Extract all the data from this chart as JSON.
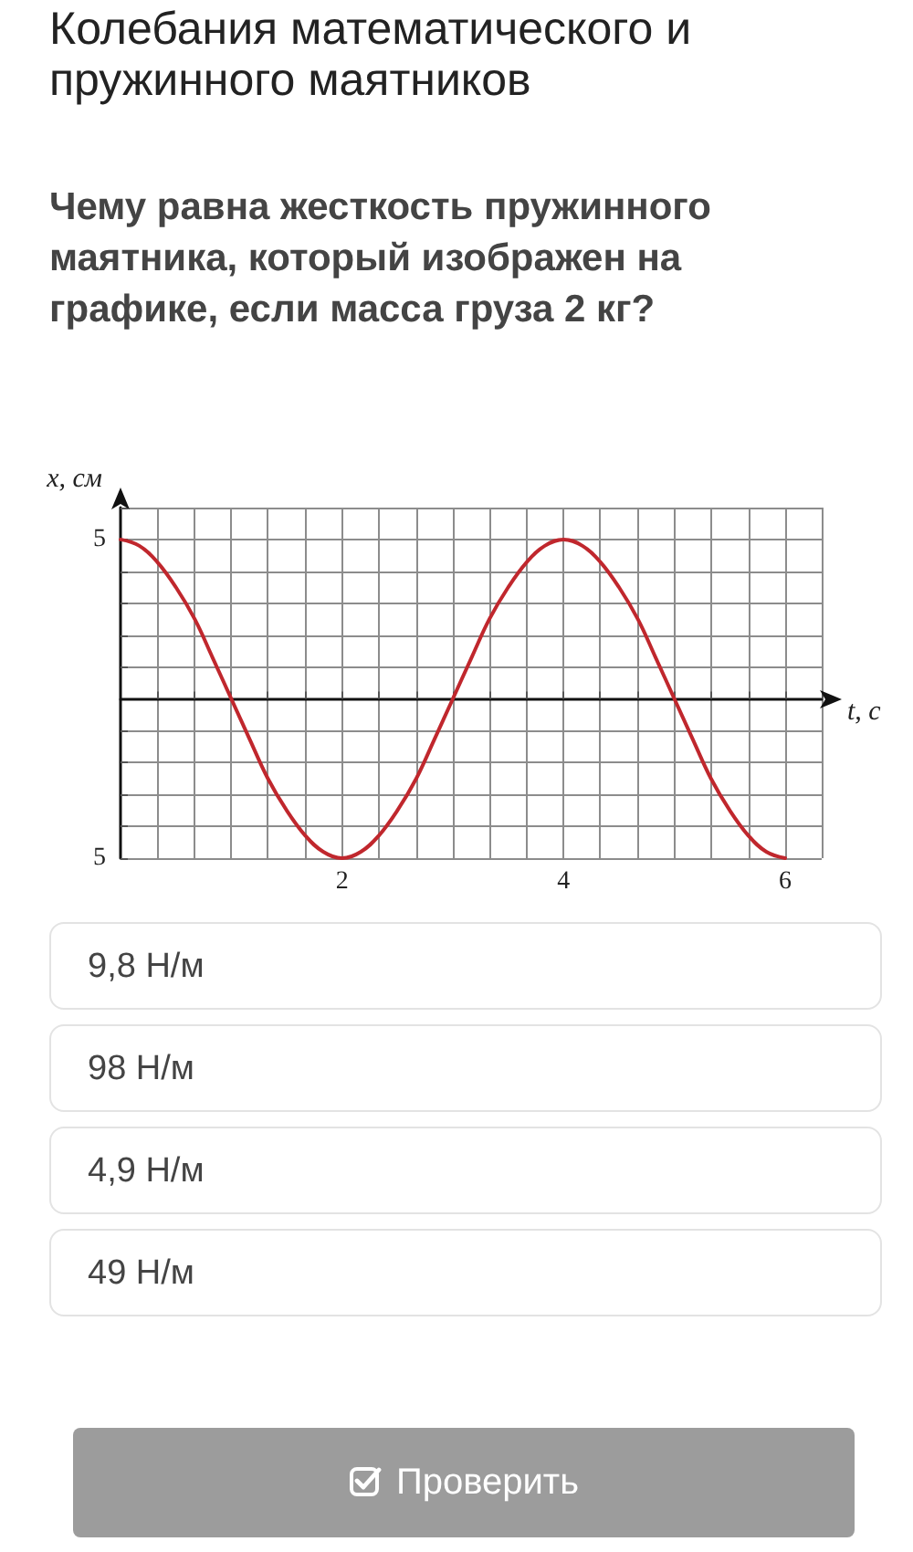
{
  "chart_data": {
    "type": "line",
    "title": "Колебания математического и пружинного маятников",
    "subtitle": "Чему равна жесткость пружинного маятника, который изображен на графике, если масса груза 2 кг?",
    "xlabel": "t, с",
    "ylabel": "x, см",
    "x": [
      0,
      0.17,
      0.33,
      0.5,
      0.67,
      0.83,
      1,
      1.17,
      1.33,
      1.5,
      1.67,
      1.83,
      2,
      2.17,
      2.33,
      2.5,
      2.67,
      2.83,
      3,
      3.17,
      3.33,
      3.5,
      3.67,
      3.83,
      4,
      4.17,
      4.33,
      4.5,
      4.67,
      4.83,
      5,
      5.17,
      5.33,
      5.5,
      5.67,
      5.83,
      6
    ],
    "values": [
      5,
      4.8,
      4.3,
      3.5,
      2.5,
      1.3,
      0,
      -1.3,
      -2.5,
      -3.5,
      -4.3,
      -4.8,
      -5,
      -4.8,
      -4.3,
      -3.5,
      -2.5,
      -1.3,
      0,
      1.3,
      2.5,
      3.5,
      4.3,
      4.8,
      5,
      4.8,
      4.3,
      3.5,
      2.5,
      1.3,
      0,
      -1.3,
      -2.5,
      -3.5,
      -4.3,
      -4.8,
      -5
    ],
    "color": "#c0272d",
    "xlim": [
      0,
      6.33
    ],
    "ylim": [
      -5,
      6
    ],
    "xticks": [
      {
        "value": 0.33,
        "label": null
      },
      {
        "value": 0.67,
        "label": null
      },
      {
        "value": 1,
        "label": null
      },
      {
        "value": 1.33,
        "label": null
      },
      {
        "value": 1.67,
        "label": null
      },
      2,
      {
        "value": 2.33,
        "label": null
      },
      {
        "value": 2.67,
        "label": null
      },
      {
        "value": 3,
        "label": null
      },
      {
        "value": 3.33,
        "label": null
      },
      {
        "value": 3.67,
        "label": null
      },
      4,
      {
        "value": 4.33,
        "label": null
      },
      {
        "value": 4.67,
        "label": null
      },
      {
        "value": 5,
        "label": null
      },
      {
        "value": 5.33,
        "label": null
      },
      {
        "value": 5.67,
        "label": null
      },
      6,
      {
        "value": 6.33,
        "label": null
      }
    ],
    "yticks": [
      {
        "value": -5,
        "label": "5"
      },
      {
        "value": -4,
        "label": null
      },
      {
        "value": -3,
        "label": null
      },
      {
        "value": -2,
        "label": null
      },
      {
        "value": -1,
        "label": null
      },
      {
        "value": 1,
        "label": null
      },
      {
        "value": 2,
        "label": null
      },
      {
        "value": 3,
        "label": null
      },
      {
        "value": 4,
        "label": null
      },
      5,
      {
        "value": 6,
        "label": null
      }
    ],
    "grid": true,
    "marker": "none",
    "annotations": [
      "9,8 Н/м",
      "98 Н/м",
      "4,9 Н/м",
      "49 Н/м",
      "Проверить"
    ]
  }
}
